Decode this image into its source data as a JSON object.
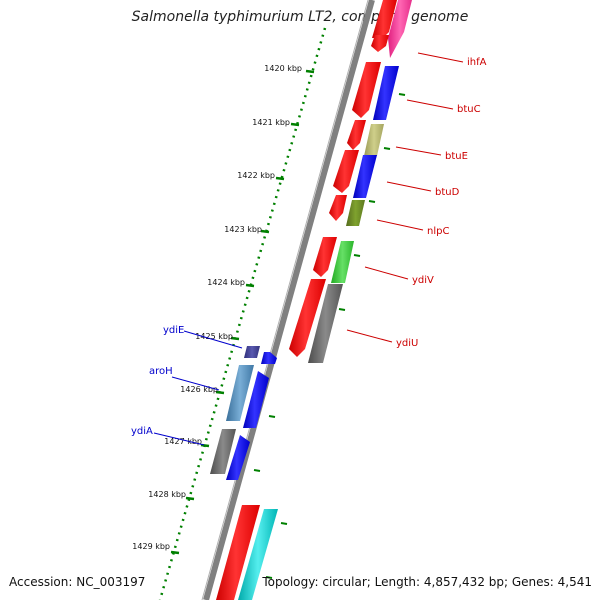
{
  "title": "Salmonella typhimurium LT2, complete genome",
  "footer": {
    "accession": "Accession: NC_003197",
    "topology": "Topology: circular; Length: 4,857,432 bp; Genes: 4,541"
  },
  "ruler_ticks": [
    "1420 kbp",
    "1421 kbp",
    "1422 kbp",
    "1423 kbp",
    "1424 kbp",
    "1425 kbp",
    "1426 kbp",
    "1427 kbp",
    "1428 kbp",
    "1429 kbp"
  ],
  "genes_forward": [
    {
      "name": "ihfA",
      "color": "#ff3399"
    },
    {
      "name": "btuC",
      "color": "#0000ff"
    },
    {
      "name": "btuE",
      "color": "#b5b56a"
    },
    {
      "name": "btuD",
      "color": "#0000ff"
    },
    {
      "name": "nlpC",
      "color": "#6b8e23"
    },
    {
      "name": "ydiV",
      "color": "#33cc33"
    },
    {
      "name": "ydiU",
      "color": "#666666"
    }
  ],
  "genes_reverse": [
    {
      "name": "ydiE",
      "color": "#3f3f8f"
    },
    {
      "name": "aroH",
      "color": "#4682b4"
    },
    {
      "name": "ydiA",
      "color": "#666666"
    }
  ],
  "colors": {
    "cds": "#ff0000",
    "backbone": "#808080",
    "ruler": "#008000",
    "label_forward": "#cc0000",
    "label_reverse": "#0000cc",
    "cyan_feature": "#00cccc"
  }
}
